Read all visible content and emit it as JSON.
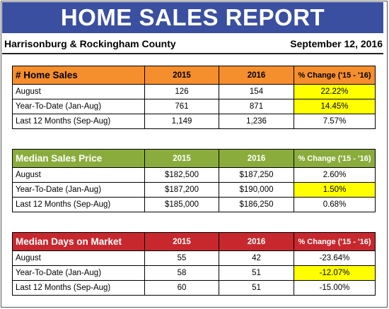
{
  "banner": {
    "title": "HOME SALES REPORT"
  },
  "subhead": {
    "region": "Harrisonburg & Rockingham County",
    "date": "September 12, 2016"
  },
  "colors": {
    "banner": "#3a4fa0",
    "sales_header": "#f58e2d",
    "price_header": "#8aac3d",
    "days_header": "#c7282e",
    "highlight": "#ffff00"
  },
  "tables": [
    {
      "title": "# Home Sales",
      "col_2015": "2015",
      "col_2016": "2016",
      "col_change": "% Change ('15 - '16)",
      "rows": [
        {
          "label": "August",
          "v2015": "126",
          "v2016": "154",
          "change": "22.22%",
          "highlight": true
        },
        {
          "label": "Year-To-Date (Jan-Aug)",
          "v2015": "761",
          "v2016": "871",
          "change": "14.45%",
          "highlight": true
        },
        {
          "label": "Last 12 Months (Sep-Aug)",
          "v2015": "1,149",
          "v2016": "1,236",
          "change": "7.57%",
          "highlight": false
        }
      ]
    },
    {
      "title": "Median Sales Price",
      "col_2015": "2015",
      "col_2016": "2016",
      "col_change": "% Change ('15 - '16)",
      "rows": [
        {
          "label": "August",
          "v2015": "$182,500",
          "v2016": "$187,250",
          "change": "2.60%",
          "highlight": false
        },
        {
          "label": "Year-To-Date (Jan-Aug)",
          "v2015": "$187,200",
          "v2016": "$190,000",
          "change": "1.50%",
          "highlight": true
        },
        {
          "label": "Last 12 Months (Sep-Aug)",
          "v2015": "$185,000",
          "v2016": "$186,250",
          "change": "0.68%",
          "highlight": false
        }
      ]
    },
    {
      "title": "Median Days on Market",
      "col_2015": "2015",
      "col_2016": "2016",
      "col_change": "% Change ('15 - '16)",
      "rows": [
        {
          "label": "August",
          "v2015": "55",
          "v2016": "42",
          "change": "-23.64%",
          "highlight": false
        },
        {
          "label": "Year-To-Date (Jan-Aug)",
          "v2015": "58",
          "v2016": "51",
          "change": "-12.07%",
          "highlight": true
        },
        {
          "label": "Last 12 Months (Sep-Aug)",
          "v2015": "60",
          "v2016": "51",
          "change": "-15.00%",
          "highlight": false
        }
      ]
    }
  ]
}
